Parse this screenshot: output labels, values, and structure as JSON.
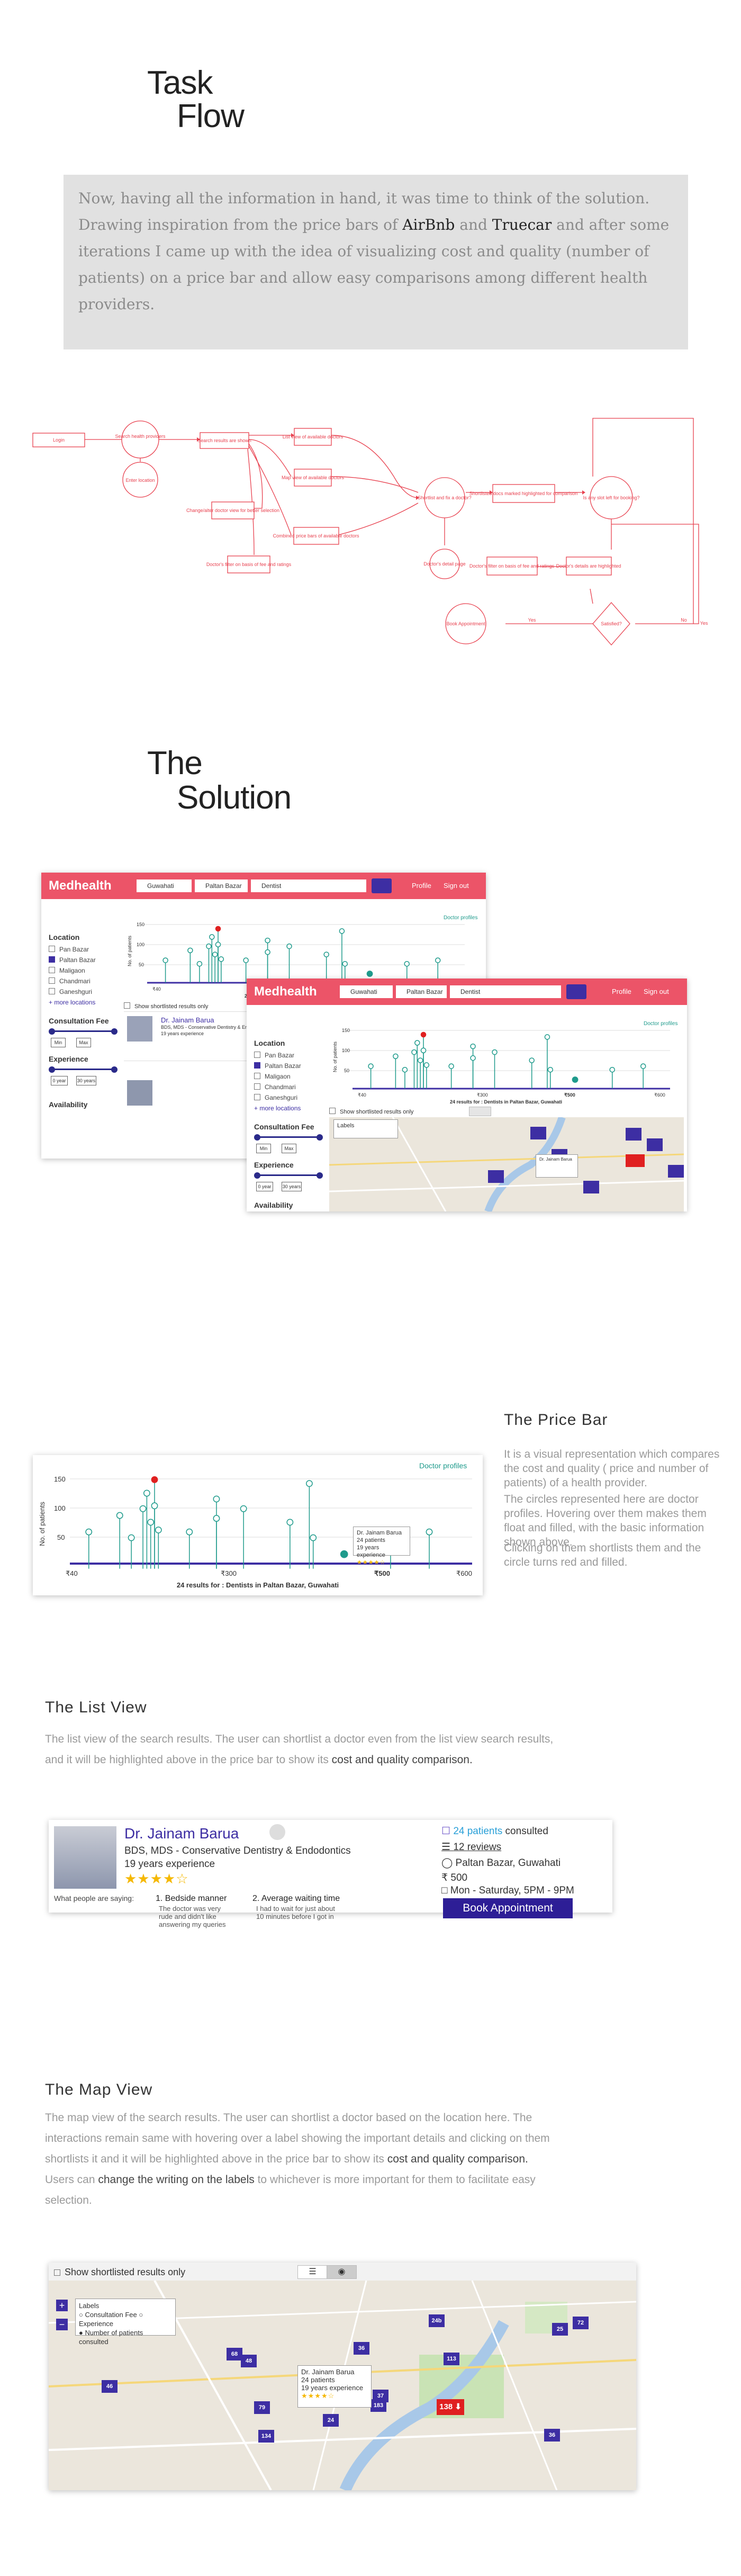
{
  "task_flow": {
    "title_line1": "Task",
    "title_line2": "Flow",
    "intro": {
      "p1": "Now, having all the information in hand, it was time to think of the solution. Drawing inspiration from the price bars of ",
      "airbnb": "AirBnb",
      "and": " and ",
      "truecar": "Truecar",
      "p2": " and after some iterations I came up with the idea of visualizing cost and quality (number of patients) on a price bar and allow easy comparisons among different health providers."
    },
    "nodes": {
      "login": "Login",
      "search_health": "Search health providers",
      "enter_location": "Enter location",
      "search_results": "Search results are shown",
      "list_view": "List view of available doctors",
      "map_view": "Map view of available doctors",
      "change_view": "Change/alter doctor view for better selection",
      "combined_price": "Combined price bars of available doctors",
      "doctor_filter": "Doctor's filter on basis of fee and ratings",
      "shortlist": "Shortlist and fix a doctor?",
      "shortlisted_highlighted": "Shortlisted docs marked highlighted for comparison",
      "is_slot": "Is any slot left for booking?",
      "doctor_detail_page": "Doctor's detail page",
      "doctor_details_highlight": "Doctor's details are highlighted",
      "satisfied": "Satisfied?",
      "book": "Book Appointment",
      "yes1": "Yes",
      "no1": "No",
      "yes2": "Yes"
    }
  },
  "solution": {
    "title_line1": "The",
    "title_line2": "Solution"
  },
  "app": {
    "brand": "Medhealth",
    "location_input": "Guwahati",
    "area_input": "Paltan Bazar",
    "search_input": "Dentist",
    "profile": "Profile",
    "signout": "Sign out",
    "doctor_profiles": "Doctor profiles",
    "results_text": "24 results for : Dentists in Paltan Bazar, Guwahati",
    "x_min": "₹40",
    "x_mid": "₹300",
    "x_sel": "₹500",
    "x_max": "₹600",
    "ylabel": "No. of patients",
    "y_150": "150",
    "y_100": "100",
    "y_50": "50",
    "sidebar": {
      "location": "Location",
      "items": [
        "Pan Bazar",
        "Paltan Bazar",
        "Maligaon",
        "Chandmari",
        "Ganeshguri"
      ],
      "more": "+ more locations",
      "fee": "Consultation Fee",
      "fee_min": "Min",
      "fee_max": "Max",
      "experience": "Experience",
      "exp_min": "0 year",
      "exp_max": "30 years",
      "availability": "Availability"
    },
    "show_shortlisted": "Show shortlisted results only",
    "tooltip": {
      "name": "Dr. Jainam Barua",
      "patients": "24 patients",
      "exp": "19 years experience",
      "fee": "₹500"
    }
  },
  "price_bar_section": {
    "heading": "The Price Bar",
    "p1": "It is a visual representation which compares the cost and quality ( price and number of patients) of a health provider.",
    "p2": "The circles represented here are doctor profiles. Hovering over them makes them float and filled, with the basic information shown above.",
    "p3": "Clicking on them shortlists them and the circle turns red and filled."
  },
  "list_view": {
    "heading": "The List View",
    "text": "The list view of the search results. The user can shortlist a doctor even from the list view search results, and it will be highlighted above in the price bar to show its ",
    "text_dark": "cost and quality comparison.",
    "card": {
      "name": "Dr. Jainam Barua",
      "degree": "BDS, MDS - Conservative Dentistry & Endodontics",
      "exp": "19 years experience",
      "stars": "★★★★☆",
      "patients_link": "24 patients",
      "consulted": " consulted",
      "reviews": "12 reviews",
      "location": "Paltan Bazar, Guwahati",
      "fee": "500",
      "timing": "Mon - Saturday, 5PM - 9PM",
      "book": "Book Appointment",
      "what_people": "What people are saying:",
      "q1_title": "1. Bedside manner",
      "q1_text": "The doctor was very rude and didn't like answering my queries",
      "q2_title": "2. Average waiting time",
      "q2_text": "I had to wait for just about 10 minutes before I got in"
    }
  },
  "map_view": {
    "heading": "The Map View",
    "text1": "The map view of the search results. The user can shortlist a doctor based on the location here. The interactions remain same with hovering over a label showing the important details and clicking on them shortlists it and it will be highlighted above in the price bar to show its ",
    "text1_dark": "cost and quality comparison.",
    "text2a": "Users can ",
    "text2_dark": "change the writing on the labels",
    "text2b": " to whichever is more important for them to facilitate easy selection.",
    "show_shortlisted": "Show shortlisted results only",
    "labels_title": "Labels",
    "label_opt1": "Consultation Fee",
    "label_opt2": "Experience",
    "label_opt3": "Number of patients consulted",
    "markers": [
      "24b",
      "72",
      "25",
      "36",
      "113",
      "48",
      "46",
      "68",
      "79",
      "134",
      "24",
      "37",
      "183",
      "36"
    ],
    "selected_marker": "138",
    "tooltip": {
      "name": "Dr. Jainam Barua",
      "patients": "24 patients",
      "exp": "19 years experience",
      "fee": "₹500"
    }
  },
  "colors": {
    "brand_red": "#ec5468",
    "accent_purple": "#3d2ea3",
    "teal": "#1f9b8c",
    "flow_red": "#e8414f"
  }
}
